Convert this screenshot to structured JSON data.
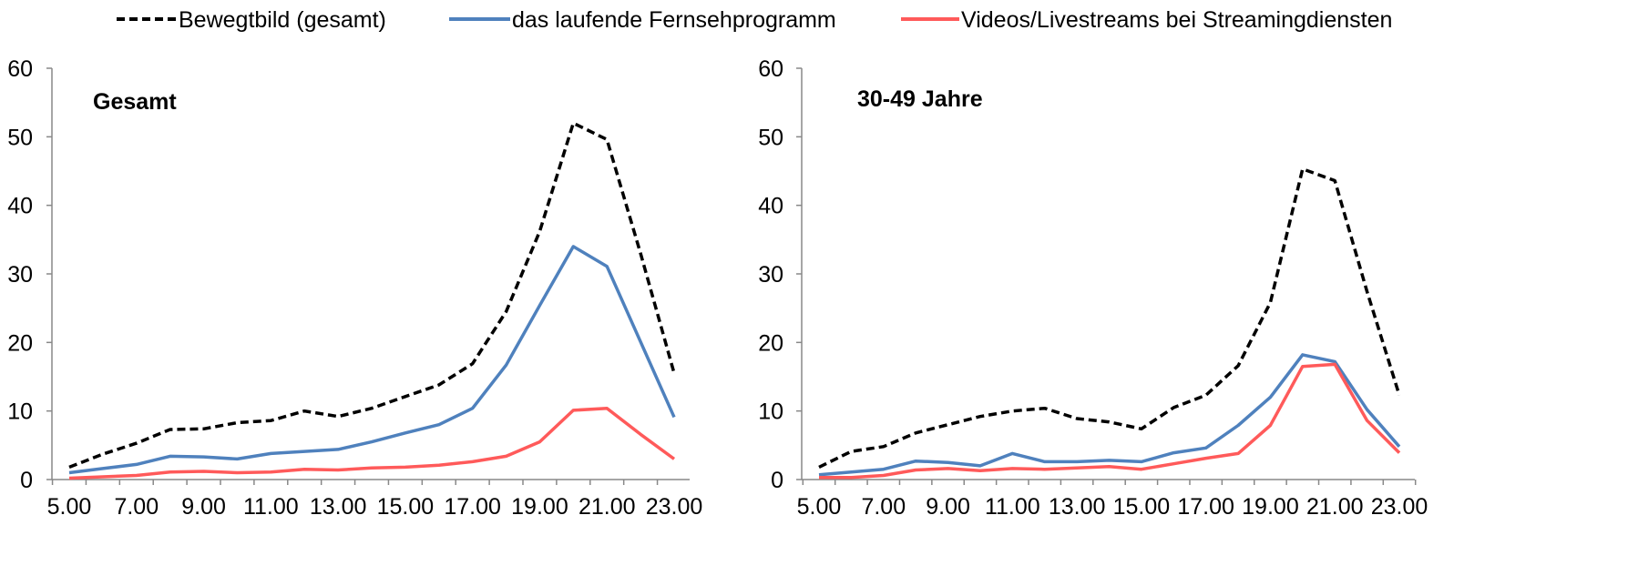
{
  "legend": [
    {
      "name": "Bewegtbild (gesamt)",
      "color": "#000000",
      "style": "dashed"
    },
    {
      "name": "das laufende Fernsehprogramm",
      "color": "#4f81bd",
      "style": "solid"
    },
    {
      "name": "Videos/Livestreams bei Streamingdiensten",
      "color": "#ff5a5a",
      "style": "solid"
    }
  ],
  "chart_data": [
    {
      "type": "line",
      "title": "Gesamt",
      "x": [
        "5.00",
        "6.00",
        "7.00",
        "8.00",
        "9.00",
        "10.00",
        "11.00",
        "12.00",
        "13.00",
        "14.00",
        "15.00",
        "16.00",
        "17.00",
        "18.00",
        "19.00",
        "20.00",
        "21.00",
        "22.00",
        "23.00"
      ],
      "x_tick_labels": [
        "5.00",
        "7.00",
        "9.00",
        "11.00",
        "13.00",
        "15.00",
        "17.00",
        "19.00",
        "21.00",
        "23.00"
      ],
      "ylim": [
        0,
        60
      ],
      "y_ticks": [
        0,
        10,
        20,
        30,
        40,
        50,
        60
      ],
      "grid": false,
      "legend_position": "top",
      "series": [
        {
          "name": "Bewegtbild (gesamt)",
          "values": [
            1.8,
            3.7,
            5.3,
            7.3,
            7.4,
            8.3,
            8.6,
            10.0,
            9.2,
            10.4,
            12.1,
            13.8,
            16.9,
            24.5,
            36.2,
            52.0,
            49.6,
            33.0,
            15.5
          ]
        },
        {
          "name": "das laufende Fernsehprogramm",
          "values": [
            1.0,
            1.6,
            2.2,
            3.4,
            3.3,
            3.0,
            3.8,
            4.1,
            4.4,
            5.5,
            6.8,
            8.0,
            10.4,
            16.7,
            25.4,
            34.0,
            31.1,
            20.1,
            9.1
          ]
        },
        {
          "name": "Videos/Livestreams bei Streamingdiensten",
          "values": [
            0.2,
            0.4,
            0.6,
            1.1,
            1.2,
            1.0,
            1.1,
            1.5,
            1.4,
            1.7,
            1.8,
            2.1,
            2.6,
            3.4,
            5.5,
            10.1,
            10.4,
            6.6,
            3.0
          ]
        }
      ]
    },
    {
      "type": "line",
      "title": "30-49 Jahre",
      "x": [
        "5.00",
        "6.00",
        "7.00",
        "8.00",
        "9.00",
        "10.00",
        "11.00",
        "12.00",
        "13.00",
        "14.00",
        "15.00",
        "16.00",
        "17.00",
        "18.00",
        "19.00",
        "20.00",
        "21.00",
        "22.00",
        "23.00"
      ],
      "x_tick_labels": [
        "5.00",
        "7.00",
        "9.00",
        "11.00",
        "13.00",
        "15.00",
        "17.00",
        "19.00",
        "21.00",
        "23.00"
      ],
      "ylim": [
        0,
        60
      ],
      "y_ticks": [
        0,
        10,
        20,
        30,
        40,
        50,
        60
      ],
      "grid": false,
      "legend_position": "top",
      "series": [
        {
          "name": "Bewegtbild (gesamt)",
          "values": [
            1.8,
            4.1,
            4.8,
            6.8,
            8.0,
            9.2,
            10.0,
            10.4,
            8.9,
            8.4,
            7.4,
            10.5,
            12.3,
            16.6,
            25.8,
            45.3,
            43.6,
            27.4,
            12.3
          ]
        },
        {
          "name": "das laufende Fernsehprogramm",
          "values": [
            0.7,
            1.1,
            1.5,
            2.7,
            2.5,
            2.0,
            3.8,
            2.6,
            2.6,
            2.8,
            2.6,
            3.9,
            4.6,
            7.9,
            12.0,
            18.2,
            17.2,
            10.2,
            4.8
          ]
        },
        {
          "name": "Videos/Livestreams bei Streamingdiensten",
          "values": [
            0.3,
            0.3,
            0.6,
            1.4,
            1.6,
            1.3,
            1.6,
            1.5,
            1.7,
            1.9,
            1.5,
            2.3,
            3.1,
            3.8,
            7.9,
            16.5,
            16.8,
            8.6,
            3.9
          ]
        }
      ]
    }
  ]
}
